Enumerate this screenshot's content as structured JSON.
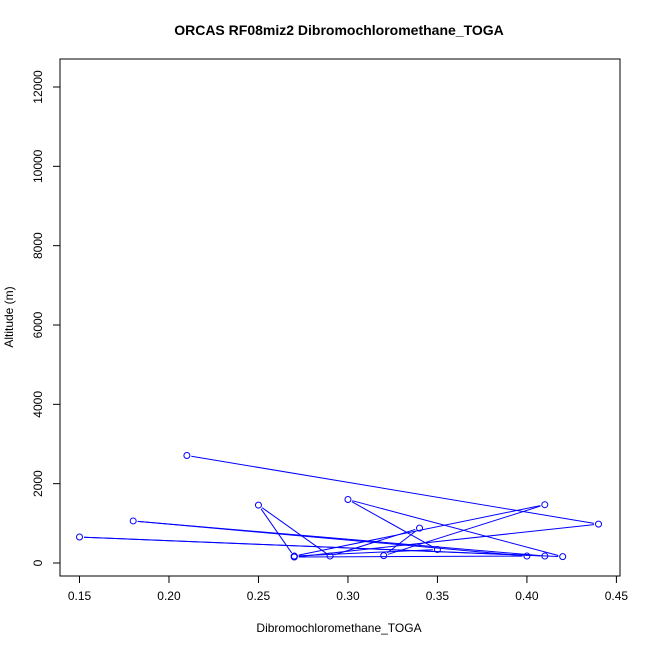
{
  "chart_data": {
    "type": "line",
    "title": "ORCAS RF08miz2 Dibromochloromethane_TOGA",
    "xlabel": "Dibromochloromethane_TOGA",
    "ylabel": "Altitude (m)",
    "xlim": [
      0.15,
      0.44
    ],
    "ylim": [
      0,
      12000
    ],
    "x_ticks": [
      0.15,
      0.2,
      0.25,
      0.3,
      0.35,
      0.4,
      0.45
    ],
    "x_tick_labels": [
      "0.15",
      "0.20",
      "0.25",
      "0.30",
      "0.35",
      "0.40",
      "0.45"
    ],
    "y_ticks": [
      0,
      2000,
      4000,
      6000,
      8000,
      10000,
      12000
    ],
    "y_tick_labels": [
      "0",
      "2000",
      "4000",
      "6000",
      "8000",
      "10000",
      "12000"
    ],
    "grid": false,
    "legend": "none",
    "series": [
      {
        "color": "#0000ff",
        "marker": "open-circle",
        "points": [
          {
            "x": 0.21,
            "y": 2710
          },
          {
            "x": 0.44,
            "y": 980
          },
          {
            "x": 0.27,
            "y": 150
          },
          {
            "x": 0.4,
            "y": 175
          },
          {
            "x": 0.18,
            "y": 1060
          },
          {
            "x": 0.41,
            "y": 175
          },
          {
            "x": 0.15,
            "y": 655
          },
          {
            "x": 0.42,
            "y": 160
          },
          {
            "x": 0.3,
            "y": 1600
          },
          {
            "x": 0.35,
            "y": 340
          },
          {
            "x": 0.27,
            "y": 175
          },
          {
            "x": 0.41,
            "y": 1470
          },
          {
            "x": 0.32,
            "y": 185
          },
          {
            "x": 0.34,
            "y": 880
          },
          {
            "x": 0.29,
            "y": 175
          },
          {
            "x": 0.25,
            "y": 1460
          },
          {
            "x": 0.27,
            "y": 160
          }
        ]
      }
    ]
  }
}
